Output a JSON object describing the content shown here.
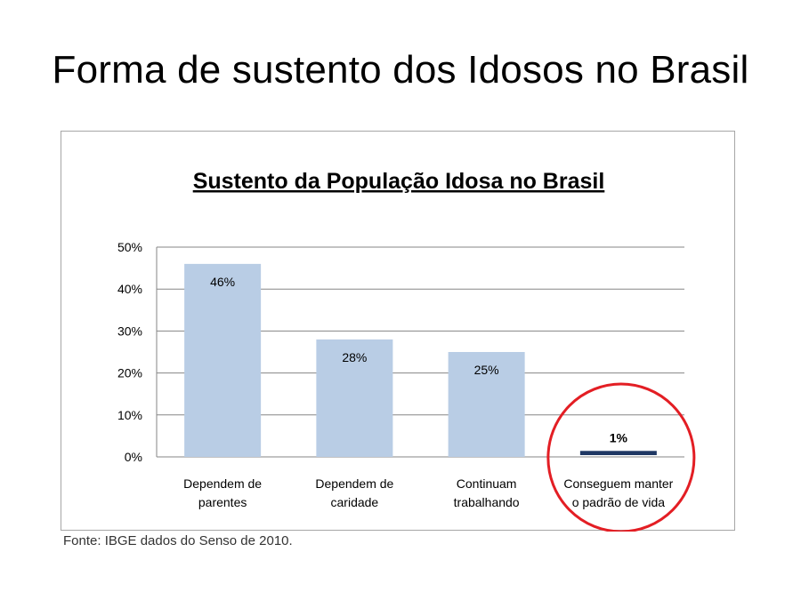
{
  "slide": {
    "title": "Forma de sustento dos Idosos no Brasil",
    "source": "Fonte: IBGE dados do Senso de 2010."
  },
  "chart_data": {
    "type": "bar",
    "title": "Sustento da População Idosa no Brasil",
    "categories": [
      [
        "Dependem de",
        "parentes"
      ],
      [
        "Dependem de",
        "caridade"
      ],
      [
        "Continuam",
        "trabalhando"
      ],
      [
        "Conseguem manter",
        "o padrão de vida"
      ]
    ],
    "values": [
      46,
      28,
      25,
      1
    ],
    "data_labels": [
      "46%",
      "28%",
      "25%",
      "1%"
    ],
    "yticks": [
      "0%",
      "10%",
      "20%",
      "30%",
      "40%",
      "50%"
    ],
    "ylim": [
      0,
      50
    ],
    "grid": true,
    "legend": "none",
    "colors": {
      "bar": "#b9cde5",
      "highlight_bar": "#1f3864",
      "grid": "#868686",
      "circle": "#e31e24"
    },
    "highlight_index": 3
  }
}
